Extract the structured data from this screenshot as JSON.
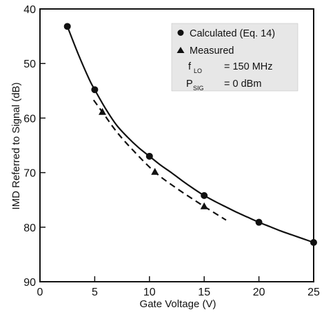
{
  "chart_data": {
    "type": "line",
    "xlabel": "Gate Voltage (V)",
    "ylabel": "IMD Referred to Signal (dB)",
    "xlim": [
      0,
      25
    ],
    "ylim": [
      40,
      90
    ],
    "y_inverted": true,
    "grid": false,
    "x_ticks": [
      0,
      5,
      10,
      15,
      20,
      25
    ],
    "y_ticks": [
      40,
      50,
      60,
      70,
      80,
      90
    ],
    "x_tick_labels": [
      "0",
      "5",
      "10",
      "15",
      "20",
      "25"
    ],
    "y_tick_labels": [
      "40",
      "50",
      "60",
      "70",
      "80",
      "90"
    ],
    "legend_position": "top-right",
    "series": [
      {
        "name": "Calculated (Eq. 14)",
        "marker": "circle",
        "line_style": "solid",
        "color": "#111111",
        "points": [
          [
            2.5,
            43.2
          ],
          [
            5.0,
            54.8
          ],
          [
            10.0,
            67.0
          ],
          [
            15.0,
            74.2
          ],
          [
            20.0,
            79.1
          ],
          [
            25.0,
            82.8
          ]
        ],
        "curve": [
          [
            2.5,
            43.2
          ],
          [
            3.5,
            48.3
          ],
          [
            4.5,
            52.9
          ],
          [
            5.0,
            54.8
          ],
          [
            6.0,
            58.3
          ],
          [
            7.0,
            61.3
          ],
          [
            8.0,
            63.5
          ],
          [
            9.0,
            65.4
          ],
          [
            10.0,
            67.0
          ],
          [
            11.0,
            68.6
          ],
          [
            12.0,
            70.0
          ],
          [
            13.0,
            71.5
          ],
          [
            14.0,
            72.9
          ],
          [
            15.0,
            74.2
          ],
          [
            16.0,
            75.3
          ],
          [
            17.0,
            76.3
          ],
          [
            18.0,
            77.3
          ],
          [
            19.0,
            78.2
          ],
          [
            20.0,
            79.1
          ],
          [
            21.0,
            79.9
          ],
          [
            22.0,
            80.7
          ],
          [
            23.0,
            81.4
          ],
          [
            24.0,
            82.1
          ],
          [
            25.0,
            82.8
          ]
        ]
      },
      {
        "name": "Measured",
        "marker": "triangle",
        "line_style": "dashed",
        "color": "#111111",
        "points": [
          [
            5.7,
            58.9
          ],
          [
            10.5,
            69.9
          ],
          [
            15.0,
            76.2
          ]
        ],
        "curve": [
          [
            4.9,
            56.7
          ],
          [
            5.7,
            58.9
          ],
          [
            7.0,
            62.5
          ],
          [
            8.5,
            65.9
          ],
          [
            10.5,
            69.9
          ],
          [
            12.5,
            72.9
          ],
          [
            15.0,
            76.2
          ],
          [
            17.0,
            78.7
          ]
        ]
      }
    ],
    "legend": {
      "lines": [
        {
          "marker": "circle",
          "text": "Calculated (Eq. 14)"
        },
        {
          "marker": "triangle",
          "text": "Measured"
        },
        {
          "symbol": "f",
          "sub": "LO",
          "text": "= 150 MHz"
        },
        {
          "symbol": "P",
          "sub": "SIG",
          "text": "= 0 dBm"
        }
      ]
    }
  }
}
